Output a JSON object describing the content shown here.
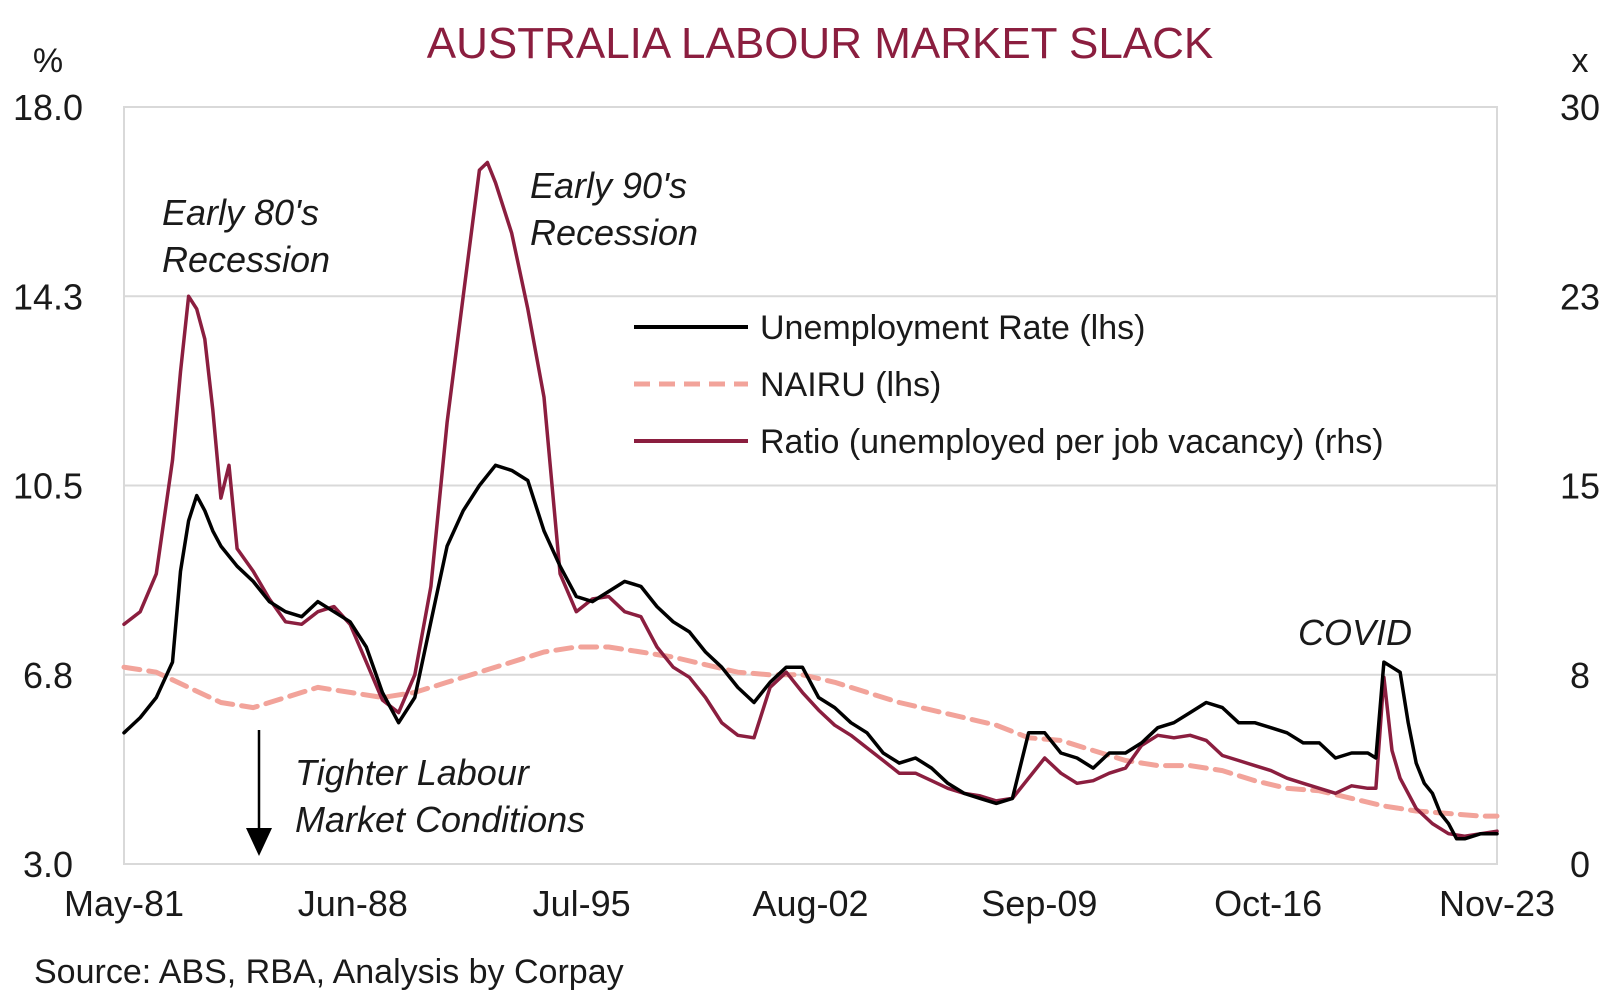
{
  "title": "AUSTRALIA LABOUR MARKET SLACK",
  "source": "Source: ABS, RBA, Analysis by Corpay",
  "colors": {
    "title": "#8B1E3F",
    "unemployment": "#000000",
    "nairu": "#F2A39A",
    "ratio": "#8B1E3F",
    "grid": "#D9D9D9",
    "frame": "#D9D9D9"
  },
  "chart_data": {
    "type": "line",
    "x_start": "1981-05",
    "x_end": "2023-11",
    "x_tick_labels": [
      "May-81",
      "Jun-88",
      "Jul-95",
      "Aug-02",
      "Sep-09",
      "Oct-16",
      "Nov-23"
    ],
    "x_ticks": [
      "1981-05",
      "1988-06",
      "1995-07",
      "2002-08",
      "2009-09",
      "2016-10",
      "2023-11"
    ],
    "left_axis": {
      "unit": "%",
      "ylim": [
        3.0,
        18.0
      ],
      "tick_labels": [
        "3.0",
        "6.8",
        "10.5",
        "14.3",
        "18.0"
      ],
      "ticks": [
        3.0,
        6.75,
        10.5,
        14.25,
        18.0
      ]
    },
    "right_axis": {
      "unit": "x",
      "ylim": [
        0,
        30
      ],
      "tick_labels": [
        "0",
        "8",
        "15",
        "23",
        "30"
      ],
      "ticks": [
        0,
        7.5,
        15,
        22.5,
        30
      ]
    },
    "grid": "horizontal",
    "legend_placement": "upper-right",
    "series": [
      {
        "name": "Unemployment Rate (lhs)",
        "axis": "left",
        "style": "solid",
        "points": [
          [
            "1981-05",
            5.6
          ],
          [
            "1981-11",
            5.9
          ],
          [
            "1982-05",
            6.3
          ],
          [
            "1982-11",
            7.0
          ],
          [
            "1983-02",
            8.8
          ],
          [
            "1983-05",
            9.8
          ],
          [
            "1983-08",
            10.3
          ],
          [
            "1983-11",
            10.0
          ],
          [
            "1984-02",
            9.6
          ],
          [
            "1984-05",
            9.3
          ],
          [
            "1984-11",
            8.9
          ],
          [
            "1985-05",
            8.6
          ],
          [
            "1985-11",
            8.2
          ],
          [
            "1986-05",
            8.0
          ],
          [
            "1986-11",
            7.9
          ],
          [
            "1987-05",
            8.2
          ],
          [
            "1987-11",
            8.0
          ],
          [
            "1988-05",
            7.8
          ],
          [
            "1988-11",
            7.3
          ],
          [
            "1989-05",
            6.4
          ],
          [
            "1989-11",
            5.8
          ],
          [
            "1990-05",
            6.3
          ],
          [
            "1990-11",
            7.8
          ],
          [
            "1991-05",
            9.3
          ],
          [
            "1991-11",
            10.0
          ],
          [
            "1992-05",
            10.5
          ],
          [
            "1992-08",
            10.7
          ],
          [
            "1992-11",
            10.9
          ],
          [
            "1993-05",
            10.8
          ],
          [
            "1993-11",
            10.6
          ],
          [
            "1994-05",
            9.6
          ],
          [
            "1994-11",
            8.9
          ],
          [
            "1995-05",
            8.3
          ],
          [
            "1995-11",
            8.2
          ],
          [
            "1996-05",
            8.4
          ],
          [
            "1996-11",
            8.6
          ],
          [
            "1997-05",
            8.5
          ],
          [
            "1997-11",
            8.1
          ],
          [
            "1998-05",
            7.8
          ],
          [
            "1998-11",
            7.6
          ],
          [
            "1999-05",
            7.2
          ],
          [
            "1999-11",
            6.9
          ],
          [
            "2000-05",
            6.5
          ],
          [
            "2000-11",
            6.2
          ],
          [
            "2001-05",
            6.6
          ],
          [
            "2001-11",
            6.9
          ],
          [
            "2002-05",
            6.9
          ],
          [
            "2002-11",
            6.3
          ],
          [
            "2003-05",
            6.1
          ],
          [
            "2003-11",
            5.8
          ],
          [
            "2004-05",
            5.6
          ],
          [
            "2004-11",
            5.2
          ],
          [
            "2005-05",
            5.0
          ],
          [
            "2005-11",
            5.1
          ],
          [
            "2006-05",
            4.9
          ],
          [
            "2006-11",
            4.6
          ],
          [
            "2007-05",
            4.4
          ],
          [
            "2007-11",
            4.3
          ],
          [
            "2008-05",
            4.2
          ],
          [
            "2008-11",
            4.3
          ],
          [
            "2009-05",
            5.6
          ],
          [
            "2009-11",
            5.6
          ],
          [
            "2010-05",
            5.2
          ],
          [
            "2010-11",
            5.1
          ],
          [
            "2011-05",
            4.9
          ],
          [
            "2011-11",
            5.2
          ],
          [
            "2012-05",
            5.2
          ],
          [
            "2012-11",
            5.4
          ],
          [
            "2013-05",
            5.7
          ],
          [
            "2013-11",
            5.8
          ],
          [
            "2014-05",
            6.0
          ],
          [
            "2014-11",
            6.2
          ],
          [
            "2015-05",
            6.1
          ],
          [
            "2015-11",
            5.8
          ],
          [
            "2016-05",
            5.8
          ],
          [
            "2016-11",
            5.7
          ],
          [
            "2017-05",
            5.6
          ],
          [
            "2017-11",
            5.4
          ],
          [
            "2018-05",
            5.4
          ],
          [
            "2018-11",
            5.1
          ],
          [
            "2019-05",
            5.2
          ],
          [
            "2019-11",
            5.2
          ],
          [
            "2020-02",
            5.1
          ],
          [
            "2020-05",
            7.0
          ],
          [
            "2020-08",
            6.9
          ],
          [
            "2020-11",
            6.8
          ],
          [
            "2021-02",
            5.8
          ],
          [
            "2021-05",
            5.0
          ],
          [
            "2021-08",
            4.6
          ],
          [
            "2021-11",
            4.4
          ],
          [
            "2022-02",
            4.0
          ],
          [
            "2022-05",
            3.8
          ],
          [
            "2022-08",
            3.5
          ],
          [
            "2022-11",
            3.5
          ],
          [
            "2023-05",
            3.6
          ],
          [
            "2023-11",
            3.6
          ]
        ]
      },
      {
        "name": "NAIRU (lhs)",
        "axis": "left",
        "style": "dashed",
        "points": [
          [
            "1981-05",
            6.9
          ],
          [
            "1982-05",
            6.8
          ],
          [
            "1983-05",
            6.5
          ],
          [
            "1984-05",
            6.2
          ],
          [
            "1985-05",
            6.1
          ],
          [
            "1986-05",
            6.3
          ],
          [
            "1987-05",
            6.5
          ],
          [
            "1988-05",
            6.4
          ],
          [
            "1989-05",
            6.3
          ],
          [
            "1990-05",
            6.4
          ],
          [
            "1991-05",
            6.6
          ],
          [
            "1992-05",
            6.8
          ],
          [
            "1993-05",
            7.0
          ],
          [
            "1994-05",
            7.2
          ],
          [
            "1995-05",
            7.3
          ],
          [
            "1996-05",
            7.3
          ],
          [
            "1997-05",
            7.2
          ],
          [
            "1998-05",
            7.1
          ],
          [
            "1999-05",
            6.95
          ],
          [
            "2000-05",
            6.8
          ],
          [
            "2001-05",
            6.75
          ],
          [
            "2002-05",
            6.75
          ],
          [
            "2003-05",
            6.6
          ],
          [
            "2004-05",
            6.4
          ],
          [
            "2005-05",
            6.2
          ],
          [
            "2006-05",
            6.05
          ],
          [
            "2007-05",
            5.9
          ],
          [
            "2008-05",
            5.75
          ],
          [
            "2009-05",
            5.5
          ],
          [
            "2010-05",
            5.45
          ],
          [
            "2011-05",
            5.25
          ],
          [
            "2012-05",
            5.05
          ],
          [
            "2013-05",
            4.95
          ],
          [
            "2014-05",
            4.95
          ],
          [
            "2015-05",
            4.85
          ],
          [
            "2016-05",
            4.65
          ],
          [
            "2017-05",
            4.5
          ],
          [
            "2018-05",
            4.45
          ],
          [
            "2019-05",
            4.3
          ],
          [
            "2020-05",
            4.15
          ],
          [
            "2021-05",
            4.05
          ],
          [
            "2022-05",
            4.0
          ],
          [
            "2023-05",
            3.95
          ],
          [
            "2023-11",
            3.95
          ]
        ]
      },
      {
        "name": "Ratio (unemployed per job vacancy) (rhs)",
        "axis": "right",
        "style": "solid",
        "points": [
          [
            "1981-05",
            9.5
          ],
          [
            "1981-11",
            10.0
          ],
          [
            "1982-05",
            11.5
          ],
          [
            "1982-11",
            16.0
          ],
          [
            "1983-02",
            19.5
          ],
          [
            "1983-05",
            22.5
          ],
          [
            "1983-08",
            22.0
          ],
          [
            "1983-11",
            20.8
          ],
          [
            "1984-02",
            18.0
          ],
          [
            "1984-05",
            14.5
          ],
          [
            "1984-08",
            15.8
          ],
          [
            "1984-11",
            12.5
          ],
          [
            "1985-05",
            11.6
          ],
          [
            "1985-11",
            10.5
          ],
          [
            "1986-05",
            9.6
          ],
          [
            "1986-11",
            9.5
          ],
          [
            "1987-05",
            10.0
          ],
          [
            "1987-11",
            10.2
          ],
          [
            "1988-05",
            9.5
          ],
          [
            "1988-11",
            8.0
          ],
          [
            "1989-05",
            6.5
          ],
          [
            "1989-11",
            6.0
          ],
          [
            "1990-05",
            7.5
          ],
          [
            "1990-11",
            11.0
          ],
          [
            "1991-05",
            17.5
          ],
          [
            "1991-11",
            22.5
          ],
          [
            "1992-05",
            27.5
          ],
          [
            "1992-08",
            27.8
          ],
          [
            "1992-11",
            27.0
          ],
          [
            "1993-05",
            25.0
          ],
          [
            "1993-11",
            22.0
          ],
          [
            "1994-05",
            18.5
          ],
          [
            "1994-11",
            11.5
          ],
          [
            "1995-05",
            10.0
          ],
          [
            "1995-11",
            10.5
          ],
          [
            "1996-05",
            10.6
          ],
          [
            "1996-11",
            10.0
          ],
          [
            "1997-05",
            9.8
          ],
          [
            "1997-11",
            8.6
          ],
          [
            "1998-05",
            7.8
          ],
          [
            "1998-11",
            7.4
          ],
          [
            "1999-05",
            6.6
          ],
          [
            "1999-11",
            5.6
          ],
          [
            "2000-05",
            5.1
          ],
          [
            "2000-11",
            5.0
          ],
          [
            "2001-05",
            7.0
          ],
          [
            "2001-11",
            7.6
          ],
          [
            "2002-05",
            6.8
          ],
          [
            "2002-11",
            6.1
          ],
          [
            "2003-05",
            5.5
          ],
          [
            "2003-11",
            5.1
          ],
          [
            "2004-05",
            4.6
          ],
          [
            "2004-11",
            4.1
          ],
          [
            "2005-05",
            3.6
          ],
          [
            "2005-11",
            3.6
          ],
          [
            "2006-05",
            3.3
          ],
          [
            "2006-11",
            3.0
          ],
          [
            "2007-05",
            2.8
          ],
          [
            "2007-11",
            2.7
          ],
          [
            "2008-05",
            2.5
          ],
          [
            "2008-11",
            2.6
          ],
          [
            "2009-11",
            4.2
          ],
          [
            "2010-05",
            3.6
          ],
          [
            "2010-11",
            3.2
          ],
          [
            "2011-05",
            3.3
          ],
          [
            "2011-11",
            3.6
          ],
          [
            "2012-05",
            3.8
          ],
          [
            "2012-11",
            4.7
          ],
          [
            "2013-05",
            5.1
          ],
          [
            "2013-11",
            5.0
          ],
          [
            "2014-05",
            5.1
          ],
          [
            "2014-11",
            4.9
          ],
          [
            "2015-05",
            4.3
          ],
          [
            "2015-11",
            4.1
          ],
          [
            "2016-05",
            3.9
          ],
          [
            "2016-11",
            3.7
          ],
          [
            "2017-05",
            3.4
          ],
          [
            "2017-11",
            3.2
          ],
          [
            "2018-05",
            3.0
          ],
          [
            "2018-11",
            2.8
          ],
          [
            "2019-05",
            3.1
          ],
          [
            "2019-11",
            3.0
          ],
          [
            "2020-02",
            3.0
          ],
          [
            "2020-05",
            7.4
          ],
          [
            "2020-08",
            4.5
          ],
          [
            "2020-11",
            3.4
          ],
          [
            "2021-05",
            2.2
          ],
          [
            "2021-11",
            1.6
          ],
          [
            "2022-05",
            1.2
          ],
          [
            "2022-11",
            1.1
          ],
          [
            "2023-05",
            1.2
          ],
          [
            "2023-11",
            1.3
          ]
        ]
      }
    ],
    "annotations": [
      {
        "lines": [
          "Early 80's",
          "Recession"
        ]
      },
      {
        "lines": [
          "Early 90's",
          "Recession"
        ]
      },
      {
        "lines": [
          "Tighter Labour",
          "Market Conditions"
        ]
      },
      {
        "lines": [
          "COVID"
        ]
      }
    ]
  }
}
